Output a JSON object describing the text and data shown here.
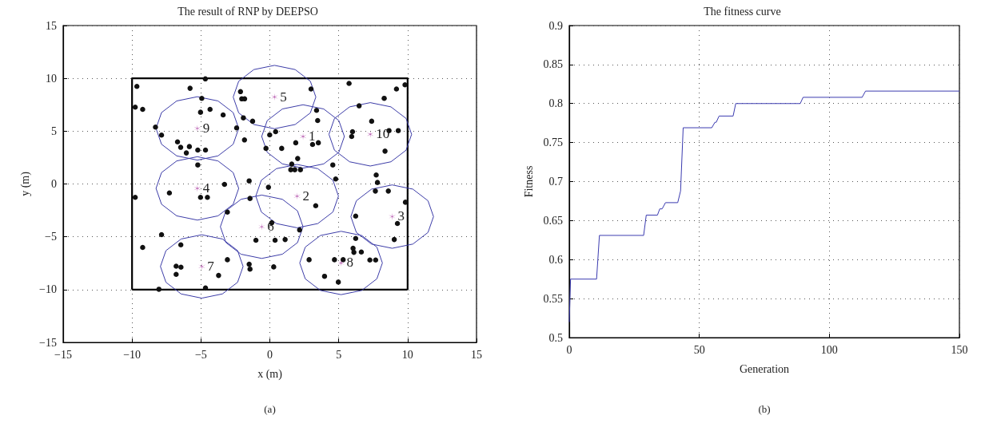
{
  "chart_data": [
    {
      "type": "scatter",
      "title": "The result of RNP by DEEPSO",
      "xlabel": "x (m)",
      "ylabel": "y (m)",
      "grid": true,
      "annotations": [
        "(a)",
        {
          "text": "1",
          "x": 2.41,
          "y": 4.5
        },
        {
          "text": "2",
          "x": 1.98,
          "y": -1.15
        },
        {
          "text": "3",
          "x": 8.88,
          "y": -3.09
        },
        {
          "text": "4",
          "x": -5.26,
          "y": -0.42
        },
        {
          "text": "5",
          "x": 0.34,
          "y": 8.23
        },
        {
          "text": "6",
          "x": -0.59,
          "y": -4.05
        },
        {
          "text": "7",
          "x": -4.94,
          "y": -7.81
        },
        {
          "text": "8",
          "x": 5.17,
          "y": -7.48
        },
        {
          "text": "9",
          "x": -5.26,
          "y": 5.26
        },
        {
          "text": "10",
          "x": 7.29,
          "y": 4.7
        }
      ],
      "xlim": [
        -15,
        15
      ],
      "xticks": [
        {
          "value": -15,
          "label": "−15"
        },
        {
          "value": -10,
          "label": "−10"
        },
        {
          "value": -5,
          "label": "−5"
        },
        0,
        5,
        10,
        15
      ],
      "ylim": [
        -15,
        15
      ],
      "yticks": [
        {
          "value": -15,
          "label": "−15"
        },
        {
          "value": -10,
          "label": "−10"
        },
        {
          "value": -5,
          "label": "−5"
        },
        0,
        5,
        10,
        15
      ],
      "series": [
        {
          "type": "line",
          "marker": "none",
          "color": "#000000",
          "x": [
            -10,
            -10,
            10,
            10
          ],
          "values": [
            -10,
            10,
            10,
            -10
          ]
        },
        {
          "type": "line",
          "marker": "none",
          "color": "#000000",
          "x": [
            -10,
            10
          ],
          "values": [
            -10,
            -10
          ]
        },
        {
          "type": "line",
          "marker": "none",
          "color": "#3c3ca8",
          "x": [
            -0.59,
            -0.19,
            0.91,
            2.41,
            3.91,
            5.01,
            5.41
          ],
          "values": [
            4.5,
            6,
            7.1,
            7.5,
            7.1,
            6,
            4.5
          ]
        },
        {
          "type": "line",
          "marker": "none",
          "color": "#3c3ca8",
          "x": [
            -0.59,
            -0.19,
            0.91,
            2.41,
            3.91,
            5.01,
            5.41
          ],
          "values": [
            4.5,
            3,
            1.9,
            1.5,
            1.9,
            3,
            4.5
          ]
        },
        {
          "type": "line",
          "marker": "none",
          "color": "#3c3ca8",
          "x": [
            -1.02,
            -0.62,
            0.48,
            1.98,
            3.48,
            4.58,
            4.98
          ],
          "values": [
            -1.15,
            0.35,
            1.45,
            1.85,
            1.45,
            0.35,
            -1.15
          ]
        },
        {
          "type": "line",
          "marker": "none",
          "color": "#3c3ca8",
          "x": [
            -1.02,
            -0.62,
            0.48,
            1.98,
            3.48,
            4.58,
            4.98
          ],
          "values": [
            -1.15,
            -2.65,
            -3.75,
            -4.15,
            -3.75,
            -2.65,
            -1.15
          ]
        },
        {
          "type": "line",
          "marker": "none",
          "color": "#3c3ca8",
          "x": [
            5.88,
            6.28,
            7.38,
            8.88,
            10.38,
            11.48,
            11.88
          ],
          "values": [
            -3.09,
            -1.59,
            -0.49,
            -0.09,
            -0.49,
            -1.59,
            -3.09
          ]
        },
        {
          "type": "line",
          "marker": "none",
          "color": "#3c3ca8",
          "x": [
            5.88,
            6.28,
            7.38,
            8.88,
            10.38,
            11.48,
            11.88
          ],
          "values": [
            -3.09,
            -4.59,
            -5.69,
            -6.09,
            -5.69,
            -4.59,
            -3.09
          ]
        },
        {
          "type": "line",
          "marker": "none",
          "color": "#3c3ca8",
          "x": [
            -8.26,
            -7.86,
            -6.76,
            -5.26,
            -3.76,
            -2.66,
            -2.26
          ],
          "values": [
            -0.42,
            1.08,
            2.18,
            2.58,
            2.18,
            1.08,
            -0.42
          ]
        },
        {
          "type": "line",
          "marker": "none",
          "color": "#3c3ca8",
          "x": [
            -8.26,
            -7.86,
            -6.76,
            -5.26,
            -3.76,
            -2.66,
            -2.26
          ],
          "values": [
            -0.42,
            -1.92,
            -3.02,
            -3.42,
            -3.02,
            -1.92,
            -0.42
          ]
        },
        {
          "type": "line",
          "marker": "none",
          "color": "#3c3ca8",
          "x": [
            -2.66,
            -2.26,
            -1.16,
            0.34,
            1.84,
            2.94,
            3.34
          ],
          "values": [
            8.23,
            9.73,
            10.83,
            11.23,
            10.83,
            9.73,
            8.23
          ]
        },
        {
          "type": "line",
          "marker": "none",
          "color": "#3c3ca8",
          "x": [
            -2.66,
            -2.26,
            -1.16,
            0.34,
            1.84,
            2.94,
            3.34
          ],
          "values": [
            8.23,
            6.73,
            5.63,
            5.23,
            5.63,
            6.73,
            8.23
          ]
        },
        {
          "type": "line",
          "marker": "none",
          "color": "#3c3ca8",
          "x": [
            -3.59,
            -3.19,
            -2.09,
            -0.59,
            0.91,
            2.01,
            2.41
          ],
          "values": [
            -4.05,
            -2.55,
            -1.45,
            -1.05,
            -1.45,
            -2.55,
            -4.05
          ]
        },
        {
          "type": "line",
          "marker": "none",
          "color": "#3c3ca8",
          "x": [
            -3.59,
            -3.19,
            -2.09,
            -0.59,
            0.91,
            2.01,
            2.41
          ],
          "values": [
            -4.05,
            -5.55,
            -6.65,
            -7.05,
            -6.65,
            -5.55,
            -4.05
          ]
        },
        {
          "type": "line",
          "marker": "none",
          "color": "#3c3ca8",
          "x": [
            -7.94,
            -7.54,
            -6.44,
            -4.94,
            -3.44,
            -2.34,
            -1.94
          ],
          "values": [
            -7.81,
            -6.31,
            -5.21,
            -4.81,
            -5.21,
            -6.31,
            -7.81
          ]
        },
        {
          "type": "line",
          "marker": "none",
          "color": "#3c3ca8",
          "x": [
            -7.94,
            -7.54,
            -6.44,
            -4.94,
            -3.44,
            -2.34,
            -1.94
          ],
          "values": [
            -7.81,
            -9.31,
            -10.41,
            -10.81,
            -10.41,
            -9.31,
            -7.81
          ]
        },
        {
          "type": "line",
          "marker": "none",
          "color": "#3c3ca8",
          "x": [
            2.17,
            2.57,
            3.67,
            5.17,
            6.67,
            7.77,
            8.17
          ],
          "values": [
            -7.48,
            -5.98,
            -4.88,
            -4.48,
            -4.88,
            -5.98,
            -7.48
          ]
        },
        {
          "type": "line",
          "marker": "none",
          "color": "#3c3ca8",
          "x": [
            2.17,
            2.57,
            3.67,
            5.17,
            6.67,
            7.77,
            8.17
          ],
          "values": [
            -7.48,
            -8.98,
            -10.08,
            -10.48,
            -10.08,
            -8.98,
            -7.48
          ]
        },
        {
          "type": "line",
          "marker": "none",
          "color": "#3c3ca8",
          "x": [
            -8.26,
            -7.86,
            -6.76,
            -5.26,
            -3.76,
            -2.66,
            -2.26
          ],
          "values": [
            5.26,
            6.76,
            7.86,
            8.26,
            7.86,
            6.76,
            5.26
          ]
        },
        {
          "type": "line",
          "marker": "none",
          "color": "#3c3ca8",
          "x": [
            -8.26,
            -7.86,
            -6.76,
            -5.26,
            -3.76,
            -2.66,
            -2.26
          ],
          "values": [
            5.26,
            3.76,
            2.66,
            2.26,
            2.66,
            3.76,
            5.26
          ]
        },
        {
          "type": "line",
          "marker": "none",
          "color": "#3c3ca8",
          "x": [
            4.29,
            4.69,
            5.79,
            7.29,
            8.79,
            9.89,
            10.29
          ],
          "values": [
            4.7,
            6.2,
            7.3,
            7.7,
            7.3,
            6.2,
            4.7
          ]
        },
        {
          "type": "line",
          "marker": "none",
          "color": "#3c3ca8",
          "x": [
            4.29,
            4.69,
            5.79,
            7.29,
            8.79,
            9.89,
            10.29
          ],
          "values": [
            4.7,
            3.2,
            2.1,
            1.7,
            2.1,
            3.2,
            4.7
          ]
        },
        {
          "marker": "circle",
          "color": "#111111",
          "x": [
            -9.65,
            -5.79,
            -4.68,
            -9.77,
            -9.23,
            -4.94,
            -5.03,
            -4.34,
            -3.39,
            -8.3,
            -7.86,
            -6.7,
            -6.47,
            -5.84,
            -6.06,
            -5.23,
            -4.67,
            -2.41,
            -1.84,
            -2.13,
            -2.04,
            -1.83,
            -1.92,
            -1.25,
            -0.28,
            -5.23,
            -3.29,
            -1.5,
            -0.1,
            -7.29,
            -9.77,
            -5.03,
            -4.53,
            -1.44,
            -3.08,
            2.99,
            5.75,
            9.19,
            9.81,
            8.3,
            6.48,
            3.39,
            3.47,
            7.39,
            -0.01,
            0.42,
            6.0,
            5.94,
            8.65,
            9.32,
            8.36,
            1.88,
            3.1,
            3.52,
            0.86,
            2.02,
            1.59,
            1.52,
            1.81,
            2.22,
            4.57,
            4.78,
            7.72,
            7.81,
            7.66,
            8.6,
            3.33,
            9.84,
            -7.86,
            -9.23,
            -6.46,
            -6.8,
            -6.45,
            -6.8,
            -3.08,
            -3.72,
            -8.05,
            -4.67,
            -1.5,
            -1.44,
            -1.01,
            0.14,
            2.16,
            0.38,
            1.11,
            0.28,
            6.23,
            9.26,
            9.03,
            6.23,
            6.04,
            6.1,
            6.64,
            2.85,
            4.69,
            5.32,
            7.26,
            7.68,
            3.97,
            4.97
          ],
          "values": [
            9.24,
            9.06,
            9.95,
            7.27,
            7.07,
            8.1,
            6.79,
            7.07,
            6.54,
            5.38,
            4.63,
            3.99,
            3.47,
            3.54,
            2.94,
            3.21,
            3.21,
            5.31,
            4.17,
            8.74,
            8.06,
            8.06,
            6.26,
            5.94,
            3.37,
            1.8,
            -0.04,
            0.29,
            -0.31,
            -0.85,
            -1.27,
            -1.27,
            -1.27,
            -1.37,
            -2.66,
            8.99,
            9.52,
            8.99,
            9.39,
            8.11,
            7.4,
            6.97,
            6.01,
            5.94,
            4.65,
            4.95,
            4.95,
            4.5,
            5.05,
            5.05,
            3.11,
            3.9,
            3.74,
            3.9,
            3.37,
            2.41,
            1.88,
            1.35,
            1.35,
            1.35,
            1.8,
            0.47,
            0.85,
            0.14,
            -0.67,
            -0.67,
            -2.06,
            -1.73,
            -4.8,
            -6.01,
            -5.76,
            -7.78,
            -7.88,
            -8.56,
            -7.17,
            -8.66,
            -9.97,
            -9.85,
            -7.6,
            -8.06,
            -5.33,
            -3.67,
            -4.35,
            -5.33,
            -5.26,
            -7.85,
            -3.04,
            -3.74,
            -5.26,
            -5.16,
            -6.09,
            -6.47,
            -6.44,
            -7.17,
            -7.17,
            -7.17,
            -7.2,
            -7.2,
            -8.74,
            -9.29
          ]
        },
        {
          "marker": "cross",
          "color": "#b04aa8",
          "x": [
            2.41,
            1.98,
            8.88,
            -5.26,
            0.34,
            -0.59,
            -4.94,
            5.17,
            -5.26,
            7.29
          ],
          "values": [
            4.5,
            -1.15,
            -3.09,
            -0.42,
            8.23,
            -4.05,
            -7.81,
            -7.48,
            5.26,
            4.7
          ]
        }
      ]
    },
    {
      "type": "line",
      "title": "The fitness curve",
      "xlabel": "Generation",
      "ylabel": "Fitness",
      "annotations": [
        "(b)"
      ],
      "grid": true,
      "marker": "none",
      "xlim": [
        0,
        150
      ],
      "xticks": [
        0,
        50,
        100,
        150
      ],
      "ylim": [
        0.5,
        0.9
      ],
      "yticks": [
        0.5,
        0.55,
        0.6,
        0.65,
        0.7,
        0.75,
        0.8,
        0.85,
        0.9
      ],
      "series": [
        {
          "color": "#3b3bb0",
          "x": [
            0,
            0.5,
            10.5,
            11.6,
            28.6,
            29.6,
            33.9,
            34.8,
            35.7,
            37,
            41.7,
            42.8,
            43.8,
            54.8,
            56,
            56.5,
            57.6,
            63,
            64,
            88.8,
            89.9,
            112.6,
            113.9,
            150
          ],
          "values": [
            0.52,
            0.575,
            0.575,
            0.631,
            0.631,
            0.657,
            0.657,
            0.665,
            0.665,
            0.673,
            0.673,
            0.688,
            0.769,
            0.769,
            0.776,
            0.776,
            0.784,
            0.784,
            0.8,
            0.8,
            0.808,
            0.808,
            0.816,
            0.816
          ]
        }
      ]
    }
  ]
}
